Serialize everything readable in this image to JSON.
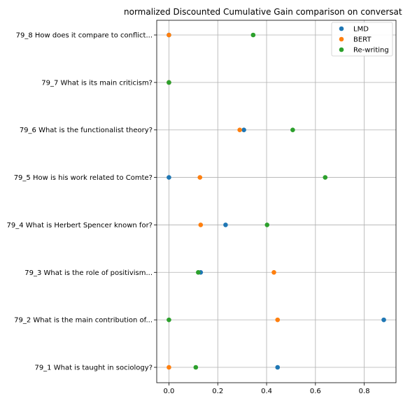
{
  "chart_data": {
    "type": "scatter",
    "title": "normalized Discounted Cumulative Gain comparison on conversat",
    "xlabel": "",
    "ylabel": "",
    "xlim": [
      -0.05,
      0.93
    ],
    "x_ticks": [
      0.0,
      0.2,
      0.4,
      0.6,
      0.8
    ],
    "x_tick_labels": [
      "0.0",
      "0.2",
      "0.4",
      "0.6",
      "0.8"
    ],
    "grid": true,
    "legend_position": "top-right",
    "categories": [
      "79_1 What is taught in sociology?",
      "79_2 What is the main contribution of...",
      "79_3 What is the role of positivism...",
      "79_4 What is Herbert Spencer known for?",
      "79_5 How is his work related to Comte?",
      "79_6 What is the functionalist theory?",
      "79_7 What is its main criticism?",
      "79_8 How does it compare to conflict..."
    ],
    "series": [
      {
        "name": "LMD",
        "color": "#1f77b4",
        "values": [
          0.445,
          0.88,
          0.13,
          0.232,
          0.0,
          0.307,
          0.0,
          0.0
        ]
      },
      {
        "name": "BERT",
        "color": "#ff7f0e",
        "values": [
          0.0,
          0.445,
          0.43,
          0.13,
          0.127,
          0.29,
          0.0,
          0.0
        ]
      },
      {
        "name": "Re-writing",
        "color": "#2ca02c",
        "values": [
          0.11,
          0.0,
          0.12,
          0.402,
          0.64,
          0.507,
          0.0,
          0.345
        ]
      }
    ]
  }
}
